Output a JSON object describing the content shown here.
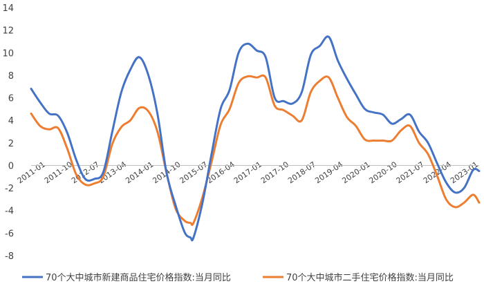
{
  "chart_data": {
    "type": "line",
    "title": "",
    "xlabel": "",
    "ylabel": "",
    "ylim": [
      -8,
      14
    ],
    "yticks": [
      -8,
      -6,
      -4,
      -2,
      0,
      2,
      4,
      6,
      8,
      10,
      12,
      14
    ],
    "x_tick_labels": [
      "2011-01",
      "2011-10",
      "2012-07",
      "2013-04",
      "2014-01",
      "2014-10",
      "2015-07",
      "2016-04",
      "2017-01",
      "2017-10",
      "2018-07",
      "2019-04",
      "2020-01",
      "2020-10",
      "2021-07",
      "2022-04",
      "2023-01"
    ],
    "x_range": [
      "2011-01",
      "2023-06"
    ],
    "grid": false,
    "legend_position": "bottom",
    "series": [
      {
        "name": "70个大中城市新建商品住宅价格指数:当月同比",
        "color": "#4472C4",
        "points": [
          [
            "2011-01",
            6.8
          ],
          [
            "2011-04",
            5.6
          ],
          [
            "2011-07",
            4.6
          ],
          [
            "2011-10",
            4.4
          ],
          [
            "2012-01",
            2.9
          ],
          [
            "2012-04",
            0.5
          ],
          [
            "2012-07",
            -1.2
          ],
          [
            "2012-10",
            -1.2
          ],
          [
            "2013-01",
            -0.6
          ],
          [
            "2013-04",
            3.0
          ],
          [
            "2013-07",
            6.5
          ],
          [
            "2013-10",
            8.5
          ],
          [
            "2014-01",
            9.6
          ],
          [
            "2014-04",
            8.0
          ],
          [
            "2014-07",
            4.6
          ],
          [
            "2014-10",
            -0.6
          ],
          [
            "2015-01",
            -3.5
          ],
          [
            "2015-04",
            -5.9
          ],
          [
            "2015-06",
            -6.4
          ],
          [
            "2015-07",
            -6.4
          ],
          [
            "2015-10",
            -3.3
          ],
          [
            "2016-01",
            1.0
          ],
          [
            "2016-04",
            5.0
          ],
          [
            "2016-07",
            6.7
          ],
          [
            "2016-10",
            10.0
          ],
          [
            "2017-01",
            10.8
          ],
          [
            "2017-04",
            10.2
          ],
          [
            "2017-07",
            9.6
          ],
          [
            "2017-10",
            6.0
          ],
          [
            "2018-01",
            5.7
          ],
          [
            "2018-04",
            5.5
          ],
          [
            "2018-07",
            6.5
          ],
          [
            "2018-10",
            9.8
          ],
          [
            "2019-01",
            10.6
          ],
          [
            "2019-04",
            11.4
          ],
          [
            "2019-07",
            9.3
          ],
          [
            "2019-10",
            7.7
          ],
          [
            "2020-01",
            6.3
          ],
          [
            "2020-04",
            5.0
          ],
          [
            "2020-07",
            4.7
          ],
          [
            "2020-10",
            4.5
          ],
          [
            "2021-01",
            3.7
          ],
          [
            "2021-04",
            4.1
          ],
          [
            "2021-07",
            4.5
          ],
          [
            "2021-10",
            3.0
          ],
          [
            "2022-01",
            2.0
          ],
          [
            "2022-04",
            0.2
          ],
          [
            "2022-07",
            -1.5
          ],
          [
            "2022-10",
            -2.4
          ],
          [
            "2023-01",
            -2.0
          ],
          [
            "2023-04",
            -0.4
          ],
          [
            "2023-06",
            -0.5
          ]
        ]
      },
      {
        "name": "70个大中城市二手住宅价格指数:当月同比",
        "color": "#ED7D31",
        "points": [
          [
            "2011-01",
            4.6
          ],
          [
            "2011-04",
            3.5
          ],
          [
            "2011-07",
            3.2
          ],
          [
            "2011-10",
            3.3
          ],
          [
            "2012-01",
            1.5
          ],
          [
            "2012-04",
            -0.8
          ],
          [
            "2012-07",
            -1.7
          ],
          [
            "2012-10",
            -1.6
          ],
          [
            "2013-01",
            -1.0
          ],
          [
            "2013-04",
            1.9
          ],
          [
            "2013-07",
            3.4
          ],
          [
            "2013-10",
            4.0
          ],
          [
            "2014-01",
            5.1
          ],
          [
            "2014-04",
            4.8
          ],
          [
            "2014-07",
            3.0
          ],
          [
            "2014-10",
            -0.6
          ],
          [
            "2015-01",
            -3.8
          ],
          [
            "2015-04",
            -4.9
          ],
          [
            "2015-06",
            -5.1
          ],
          [
            "2015-07",
            -5.1
          ],
          [
            "2015-10",
            -2.8
          ],
          [
            "2016-01",
            0.3
          ],
          [
            "2016-04",
            3.6
          ],
          [
            "2016-07",
            5.0
          ],
          [
            "2016-10",
            7.3
          ],
          [
            "2017-01",
            7.9
          ],
          [
            "2017-04",
            7.8
          ],
          [
            "2017-07",
            7.8
          ],
          [
            "2017-10",
            5.3
          ],
          [
            "2018-01",
            4.9
          ],
          [
            "2018-04",
            4.4
          ],
          [
            "2018-07",
            4.0
          ],
          [
            "2018-10",
            6.5
          ],
          [
            "2019-01",
            7.5
          ],
          [
            "2019-04",
            7.8
          ],
          [
            "2019-07",
            6.0
          ],
          [
            "2019-10",
            4.3
          ],
          [
            "2020-01",
            3.5
          ],
          [
            "2020-04",
            2.3
          ],
          [
            "2020-07",
            2.2
          ],
          [
            "2020-10",
            2.2
          ],
          [
            "2021-01",
            2.2
          ],
          [
            "2021-04",
            3.1
          ],
          [
            "2021-07",
            3.5
          ],
          [
            "2021-10",
            2.0
          ],
          [
            "2022-01",
            1.0
          ],
          [
            "2022-04",
            -0.9
          ],
          [
            "2022-07",
            -3.0
          ],
          [
            "2022-10",
            -3.7
          ],
          [
            "2023-01",
            -3.3
          ],
          [
            "2023-04",
            -2.6
          ],
          [
            "2023-06",
            -3.3
          ]
        ]
      }
    ]
  }
}
